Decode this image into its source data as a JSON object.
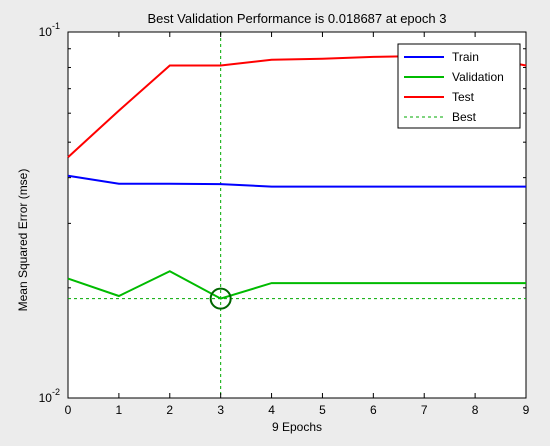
{
  "chart_data": {
    "type": "line",
    "title": "Best Validation Performance is 0.018687 at epoch 3",
    "xlabel": "9 Epochs",
    "ylabel": "Mean Squared Error  (mse)",
    "x": [
      0,
      1,
      2,
      3,
      4,
      5,
      6,
      7,
      8,
      9
    ],
    "xlim": [
      0,
      9
    ],
    "ylim": [
      0.01,
      0.1
    ],
    "yscale": "log",
    "x_ticks": [
      "0",
      "1",
      "2",
      "3",
      "4",
      "5",
      "6",
      "7",
      "8",
      "9"
    ],
    "y_ticks": [
      {
        "base": "10",
        "exp": "-1",
        "value": 0.1
      },
      {
        "base": "10",
        "exp": "-2",
        "value": 0.01
      }
    ],
    "series": [
      {
        "name": "Train",
        "color": "#0000ff",
        "style": "solid",
        "values": [
          0.0405,
          0.0385,
          0.0385,
          0.0384,
          0.0378,
          0.0378,
          0.0378,
          0.0378,
          0.0378,
          0.0378
        ]
      },
      {
        "name": "Validation",
        "color": "#00bb00",
        "style": "solid",
        "values": [
          0.0212,
          0.019,
          0.0222,
          0.018687,
          0.0206,
          0.0206,
          0.0206,
          0.0206,
          0.0206,
          0.0206
        ]
      },
      {
        "name": "Test",
        "color": "#ff0000",
        "style": "solid",
        "values": [
          0.0455,
          0.061,
          0.081,
          0.081,
          0.084,
          0.0845,
          0.0855,
          0.086,
          0.086,
          0.081
        ]
      },
      {
        "name": "Best",
        "color": "#00aa00",
        "style": "dotted"
      }
    ],
    "best": {
      "epoch": 3,
      "value": 0.018687,
      "marker": "circle"
    },
    "grid": false,
    "legend_position": "top-right"
  }
}
